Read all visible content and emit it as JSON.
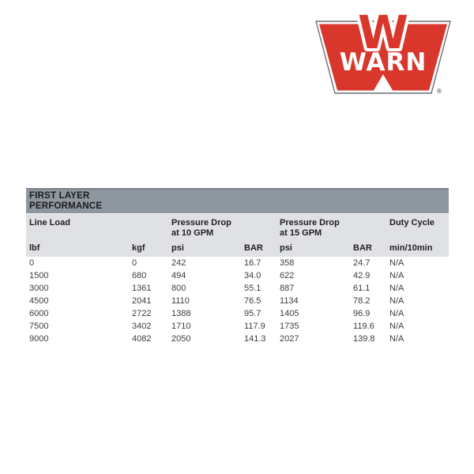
{
  "logo": {
    "brand": "WARN",
    "registered_mark": "®",
    "colors": {
      "red": "#d9362c",
      "outline": "#6e6e70",
      "text": "#ffffff"
    }
  },
  "table": {
    "title_line1": "FIRST LAYER",
    "title_line2": "PERFORMANCE",
    "group_headers": [
      {
        "label": "Line Load"
      },
      {
        "label_line1": "Pressure Drop",
        "label_line2": "at 10 GPM"
      },
      {
        "label_line1": "Pressure Drop",
        "label_line2": "at 15 GPM"
      },
      {
        "label": "Duty Cycle"
      }
    ],
    "unit_headers": [
      "lbf",
      "kgf",
      "psi",
      "BAR",
      "psi",
      "BAR",
      "min/10min"
    ],
    "rows": [
      [
        "0",
        "0",
        "242",
        "16.7",
        "358",
        "24.7",
        "N/A"
      ],
      [
        "1500",
        "680",
        "494",
        "34.0",
        "622",
        "42.9",
        "N/A"
      ],
      [
        "3000",
        "1361",
        "800",
        "55.1",
        "887",
        "61.1",
        "N/A"
      ],
      [
        "4500",
        "2041",
        "1110",
        "76.5",
        "1134",
        "78.2",
        "N/A"
      ],
      [
        "6000",
        "2722",
        "1388",
        "95.7",
        "1405",
        "96.9",
        "N/A"
      ],
      [
        "7500",
        "3402",
        "1710",
        "117.9",
        "1735",
        "119.6",
        "N/A"
      ],
      [
        "9000",
        "4082",
        "2050",
        "141.3",
        "2027",
        "139.8",
        "N/A"
      ]
    ],
    "colors": {
      "title_band": "#8e96a0",
      "header_bg": "#dfe1e4",
      "title_text": "#1b1b1b",
      "data_text": "#3d3d3d"
    }
  },
  "chart_data": {
    "type": "table",
    "title": "FIRST LAYER PERFORMANCE",
    "columns": [
      "Line Load (lbf)",
      "Line Load (kgf)",
      "Pressure Drop at 10 GPM (psi)",
      "Pressure Drop at 10 GPM (BAR)",
      "Pressure Drop at 15 GPM (psi)",
      "Pressure Drop at 15 GPM (BAR)",
      "Duty Cycle (min/10min)"
    ],
    "rows": [
      [
        0,
        0,
        242,
        16.7,
        358,
        24.7,
        "N/A"
      ],
      [
        1500,
        680,
        494,
        34.0,
        622,
        42.9,
        "N/A"
      ],
      [
        3000,
        1361,
        800,
        55.1,
        887,
        61.1,
        "N/A"
      ],
      [
        4500,
        2041,
        1110,
        76.5,
        1134,
        78.2,
        "N/A"
      ],
      [
        6000,
        2722,
        1388,
        95.7,
        1405,
        96.9,
        "N/A"
      ],
      [
        7500,
        3402,
        1710,
        117.9,
        1735,
        119.6,
        "N/A"
      ],
      [
        9000,
        4082,
        2050,
        141.3,
        2027,
        139.8,
        "N/A"
      ]
    ]
  }
}
